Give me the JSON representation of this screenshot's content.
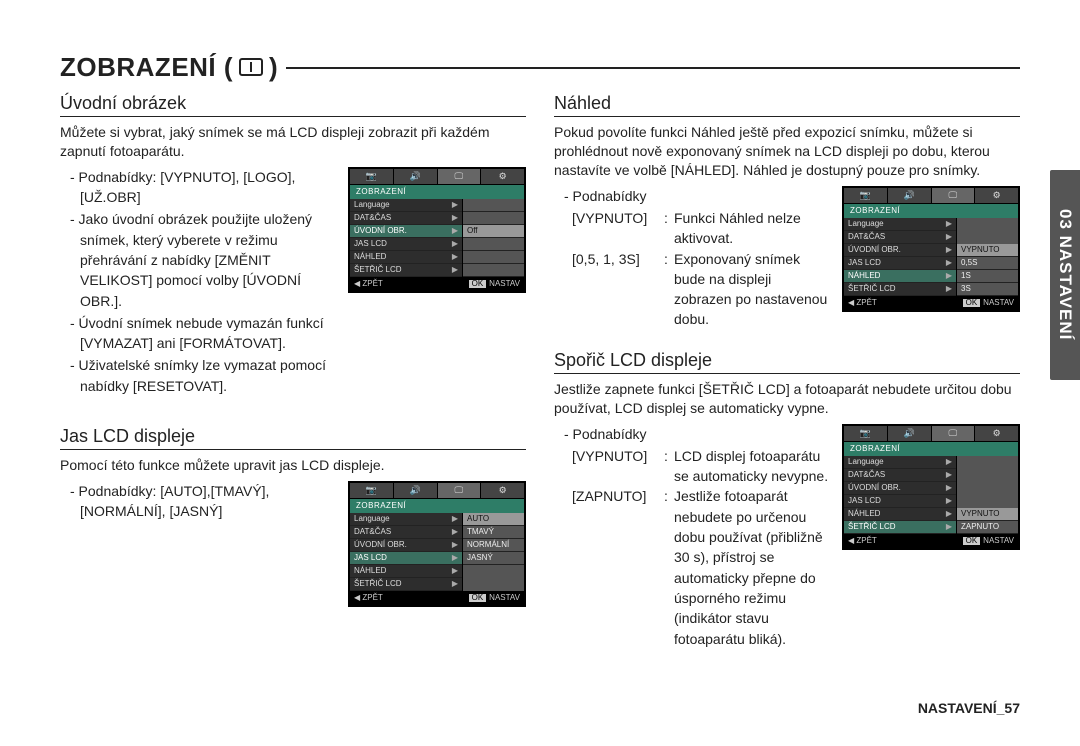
{
  "title": {
    "text": "ZOBRAZENÍ (",
    "close": ")"
  },
  "side_tab": "03 NASTAVENÍ",
  "footer": "NASTAVENÍ_57",
  "lcd_common": {
    "tabs_glyphs": [
      "📷",
      "🔊",
      "🖵",
      "⚙"
    ],
    "title": "ZOBRAZENÍ",
    "footer_back": "◀  ZPĚT",
    "footer_ok": "OK",
    "footer_set": "NASTAV"
  },
  "sections": {
    "uvodni": {
      "heading": "Úvodní obrázek",
      "body": "Můžete si vybrat, jaký snímek se má LCD displeji zobrazit při každém zapnutí fotoaparátu.",
      "items": [
        "- Podnabídky: [VYPNUTO], [LOGO], [UŽ.OBR]",
        "- Jako úvodní obrázek použijte uložený snímek, který vyberete v režimu přehrávání z nabídky [ZMĚNIT VELIKOST] pomocí volby [ÚVODNÍ OBR.].",
        "- Úvodní snímek nebude vymazán funkcí [VYMAZAT] ani [FORMÁTOVAT].",
        "- Uživatelské snímky lze vymazat pomocí nabídky [RESETOVAT]."
      ],
      "lcd": {
        "activeTab": 2,
        "menu": [
          "Language",
          "DAT&ČAS",
          "ÚVODNÍ OBR.",
          "JAS LCD",
          "NÁHLED",
          "ŠETŘIČ LCD"
        ],
        "selectedIndex": 2,
        "values": [
          "",
          "",
          "Off",
          "",
          "",
          ""
        ],
        "valueSelected": 2
      }
    },
    "jas": {
      "heading": "Jas LCD displeje",
      "body": "Pomocí této funkce můžete upravit jas LCD displeje.",
      "items": [
        "- Podnabídky: [AUTO],[TMAVÝ], [NORMÁLNÍ], [JASNÝ]"
      ],
      "lcd": {
        "activeTab": 2,
        "menu": [
          "Language",
          "DAT&ČAS",
          "ÚVODNÍ OBR.",
          "JAS LCD",
          "NÁHLED",
          "ŠETŘIČ LCD"
        ],
        "selectedIndex": 3,
        "values": [
          "AUTO",
          "TMAVÝ",
          "NORMÁLNÍ",
          "JASNÝ"
        ],
        "valueSelected": 0
      }
    },
    "nahled": {
      "heading": "Náhled",
      "body": "Pokud povolíte funkci Náhled ještě před expozicí snímku, můžete si prohlédnout nově exponovaný snímek na LCD displeji po dobu, kterou nastavíte ve volbě [NÁHLED]. Náhled je dostupný pouze pro snímky.",
      "sub_label": "- Podnabídky",
      "kv": [
        {
          "k": "[VYPNUTO]",
          "v": "Funkci Náhled nelze aktivovat."
        },
        {
          "k": "[0,5, 1, 3S]",
          "v": "Exponovaný snímek bude na displeji zobrazen po nastavenou dobu."
        }
      ],
      "lcd": {
        "activeTab": 2,
        "menu": [
          "Language",
          "DAT&ČAS",
          "ÚVODNÍ OBR.",
          "JAS LCD",
          "NÁHLED",
          "ŠETŘIČ LCD"
        ],
        "selectedIndex": 4,
        "values": [
          "VYPNUTO",
          "0,5S",
          "1S",
          "3S"
        ],
        "valueSelected": 0,
        "rightShift": 2
      }
    },
    "sporic": {
      "heading": "Spořič LCD displeje",
      "body": "Jestliže zapnete funkci [ŠETŘIČ LCD] a fotoaparát nebudete určitou dobu používat, LCD displej se automaticky vypne.",
      "sub_label": "- Podnabídky",
      "kv": [
        {
          "k": "[VYPNUTO]",
          "v": "LCD displej fotoaparátu se automaticky nevypne."
        },
        {
          "k": "[ZAPNUTO]",
          "v": "Jestliže fotoaparát nebudete po určenou dobu používat (přibližně 30 s), přístroj se automaticky přepne do úsporného režimu (indikátor stavu fotoaparátu bliká)."
        }
      ],
      "lcd": {
        "activeTab": 2,
        "menu": [
          "Language",
          "DAT&ČAS",
          "ÚVODNÍ OBR.",
          "JAS LCD",
          "NÁHLED",
          "ŠETŘIČ LCD"
        ],
        "selectedIndex": 5,
        "values": [
          "VYPNUTO",
          "ZAPNUTO"
        ],
        "valueSelected": 0,
        "rightShift": 4
      }
    }
  }
}
